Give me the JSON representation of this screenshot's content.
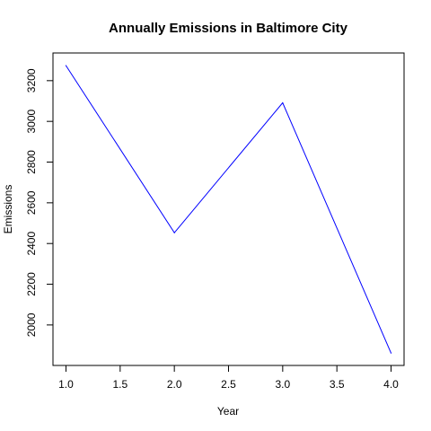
{
  "chart_data": {
    "type": "line",
    "title": "Annually Emissions in Baltimore City",
    "xlabel": "Year",
    "ylabel": "Emissions",
    "xlim": [
      0.88,
      4.12
    ],
    "ylim": [
      1801,
      3336
    ],
    "x_ticks": [
      1.0,
      1.5,
      2.0,
      2.5,
      3.0,
      3.5,
      4.0
    ],
    "x_tick_labels": [
      "1.0",
      "1.5",
      "2.0",
      "2.5",
      "3.0",
      "3.5",
      "4.0"
    ],
    "y_ticks": [
      2000,
      2200,
      2400,
      2600,
      2800,
      3000,
      3200
    ],
    "y_tick_labels": [
      "2000",
      "2200",
      "2400",
      "2600",
      "2800",
      "3000",
      "3200"
    ],
    "series": [
      {
        "x": [
          1,
          2,
          3,
          4
        ],
        "values": [
          3274,
          2453,
          3091,
          1862
        ],
        "color": "#0000ff"
      }
    ],
    "grid": false,
    "legend": "none"
  }
}
